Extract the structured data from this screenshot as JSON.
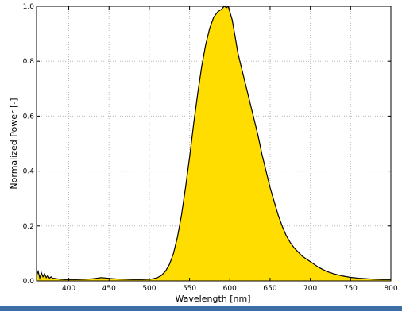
{
  "colors": {
    "fill": "#ffdd00",
    "line": "#000000",
    "grid": "#b8b8b8",
    "bottom_strip": "#3d6fa6"
  },
  "chart_data": {
    "type": "area",
    "xlabel": "Wavelength [nm]",
    "ylabel": "Normalized Power [-]",
    "xlim": [
      360,
      800
    ],
    "ylim": [
      0.0,
      1.0
    ],
    "grid": true,
    "x_ticks": [
      400,
      450,
      500,
      550,
      600,
      650,
      700,
      750,
      800
    ],
    "x_tick_labels": [
      "400",
      "450",
      "500",
      "550",
      "600",
      "650",
      "700",
      "750",
      "800"
    ],
    "y_ticks": [
      0.0,
      0.2,
      0.4,
      0.6,
      0.8,
      1.0
    ],
    "y_tick_labels": [
      "0.0",
      "0.2",
      "0.4",
      "0.6",
      "0.8",
      "1.0"
    ],
    "x": [
      360,
      362,
      364,
      366,
      368,
      370,
      372,
      374,
      376,
      378,
      380,
      385,
      390,
      395,
      400,
      410,
      420,
      430,
      435,
      440,
      445,
      450,
      460,
      470,
      480,
      490,
      500,
      505,
      510,
      515,
      520,
      525,
      530,
      535,
      540,
      545,
      550,
      555,
      560,
      565,
      570,
      575,
      580,
      585,
      590,
      593,
      596,
      598,
      600,
      603,
      606,
      610,
      615,
      620,
      625,
      630,
      635,
      640,
      645,
      650,
      655,
      660,
      665,
      670,
      675,
      680,
      690,
      700,
      710,
      720,
      730,
      740,
      750,
      760,
      770,
      780,
      790,
      800
    ],
    "y": [
      0.02,
      0.035,
      0.01,
      0.03,
      0.015,
      0.025,
      0.012,
      0.02,
      0.01,
      0.015,
      0.01,
      0.008,
      0.006,
      0.005,
      0.005,
      0.005,
      0.006,
      0.008,
      0.01,
      0.012,
      0.011,
      0.009,
      0.007,
      0.006,
      0.005,
      0.005,
      0.006,
      0.008,
      0.012,
      0.02,
      0.035,
      0.06,
      0.1,
      0.16,
      0.24,
      0.34,
      0.45,
      0.57,
      0.68,
      0.78,
      0.86,
      0.92,
      0.96,
      0.98,
      0.99,
      1.0,
      0.995,
      1.0,
      0.98,
      0.95,
      0.9,
      0.83,
      0.77,
      0.71,
      0.65,
      0.59,
      0.53,
      0.46,
      0.4,
      0.34,
      0.29,
      0.24,
      0.2,
      0.165,
      0.14,
      0.12,
      0.09,
      0.07,
      0.05,
      0.035,
      0.025,
      0.018,
      0.013,
      0.01,
      0.008,
      0.006,
      0.005,
      0.005
    ]
  }
}
